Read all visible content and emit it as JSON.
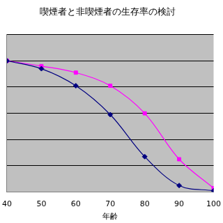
{
  "chart_data": {
    "type": "line",
    "title": "喫煙者と非喫煙者の生存率の検討",
    "x_label": "年齢",
    "x": [
      40,
      50,
      60,
      70,
      80,
      90,
      100
    ],
    "series": [
      {
        "color": "#000080",
        "marker": "diamond",
        "values": [
          100,
          94,
          81,
          59,
          27,
          5,
          1
        ]
      },
      {
        "color": "#ff00ff",
        "marker": "square",
        "values": [
          100,
          96,
          91,
          81,
          60,
          25,
          3
        ]
      }
    ],
    "xlim": [
      40,
      100
    ],
    "xticks": [
      40,
      50,
      60,
      70,
      80,
      90,
      100
    ],
    "ylim": [
      0,
      120
    ],
    "yticks": [
      0,
      20,
      40,
      60,
      80,
      100,
      120
    ],
    "grid": true,
    "tick_labels": "x"
  }
}
